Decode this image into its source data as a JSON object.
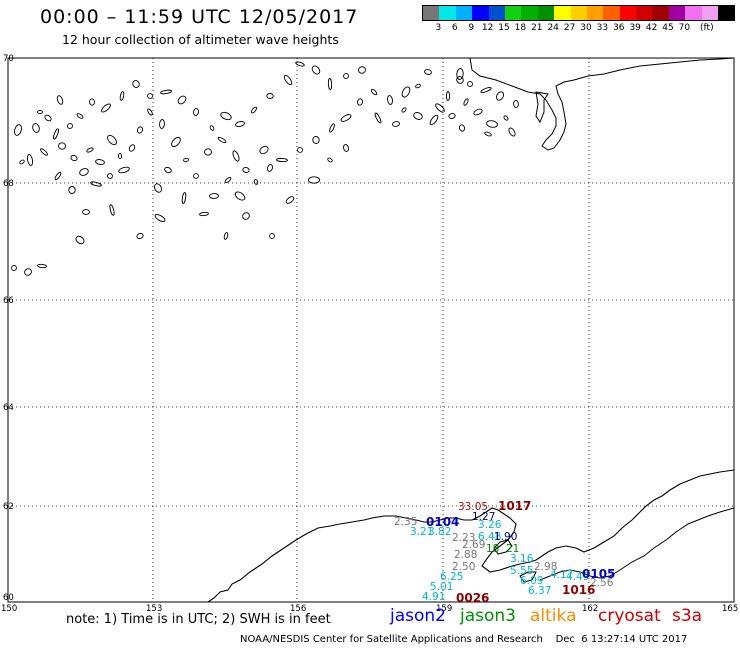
{
  "header": {
    "title": "00:00 – 11:59 UTC 12/05/2017",
    "subtitle": "12 hour collection of altimeter wave heights"
  },
  "legend": {
    "swatches": [
      "#777777",
      "#00e8e8",
      "#00b0ff",
      "#0000ff",
      "#0050d0",
      "#10d010",
      "#00b000",
      "#009000",
      "#ffff00",
      "#ffd000",
      "#ffa000",
      "#ff6000",
      "#ff0000",
      "#d00000",
      "#a00000",
      "#a000a0",
      "#f070f0",
      "#f0a0f0",
      "#000000"
    ],
    "labels": [
      "3",
      "6",
      "9",
      "12",
      "15",
      "18",
      "21",
      "24",
      "27",
      "30",
      "33",
      "36",
      "39",
      "42",
      "45",
      "70"
    ],
    "unit": "(ft)"
  },
  "axes": {
    "lat_labels": [
      "70",
      "68",
      "66",
      "64",
      "62",
      "60"
    ],
    "lon_labels": [
      "150",
      "153",
      "156",
      "159",
      "162",
      "165"
    ]
  },
  "pass_labels": [
    {
      "text": "1017",
      "color": "#8b0000"
    },
    {
      "text": "0104",
      "color": "#0000cc"
    },
    {
      "text": "0026",
      "color": "#8b0000"
    },
    {
      "text": "0105",
      "color": "#0000cc"
    },
    {
      "text": "1016",
      "color": "#8b0000"
    }
  ],
  "samples": [
    {
      "text": "33.05",
      "color": "#aa1111"
    },
    {
      "text": "1.27",
      "color": "#00008b"
    },
    {
      "text": "2.35",
      "color": "#777777"
    },
    {
      "text": "3.21",
      "color": "#00b8cc"
    },
    {
      "text": "3.82",
      "color": "#00b8cc"
    },
    {
      "text": "3.26",
      "color": "#00b8cc"
    },
    {
      "text": "2.23",
      "color": "#777777"
    },
    {
      "text": "6.48",
      "color": "#00b8cc"
    },
    {
      "text": "1.90",
      "color": "#00008b"
    },
    {
      "text": "2.69",
      "color": "#777777"
    },
    {
      "text": "18",
      "color": "#008800"
    },
    {
      "text": "21",
      "color": "#008800"
    },
    {
      "text": "2.88",
      "color": "#777777"
    },
    {
      "text": "2.50",
      "color": "#777777"
    },
    {
      "text": "3.16",
      "color": "#00b8cc"
    },
    {
      "text": "5.55",
      "color": "#00b8cc"
    },
    {
      "text": "2.98",
      "color": "#777777"
    },
    {
      "text": "4.17",
      "color": "#00b8cc"
    },
    {
      "text": "4.49",
      "color": "#00b8cc"
    },
    {
      "text": "6.09",
      "color": "#00b8cc"
    },
    {
      "text": "6.25",
      "color": "#00b8cc"
    },
    {
      "text": "5.01",
      "color": "#00b8cc"
    },
    {
      "text": "6.37",
      "color": "#00b8cc"
    },
    {
      "text": "4.91",
      "color": "#00b8cc"
    },
    {
      "text": "2.56",
      "color": "#777777"
    }
  ],
  "footer": {
    "note": "note:  1) Time is in UTC;  2) SWH is in feet",
    "satellites": [
      {
        "name": "jason2",
        "color": "#0000ff"
      },
      {
        "name": "jason3",
        "color": "#009000"
      },
      {
        "name": "altika",
        "color": "#ff8c00"
      },
      {
        "name": "cryosat",
        "color": "#cc0000"
      },
      {
        "name": "s3a",
        "color": "#cc0000"
      }
    ],
    "credit": "NOAA/NESDIS Center for Satellite Applications and Research    Dec  6 13:27:14 UTC 2017"
  }
}
